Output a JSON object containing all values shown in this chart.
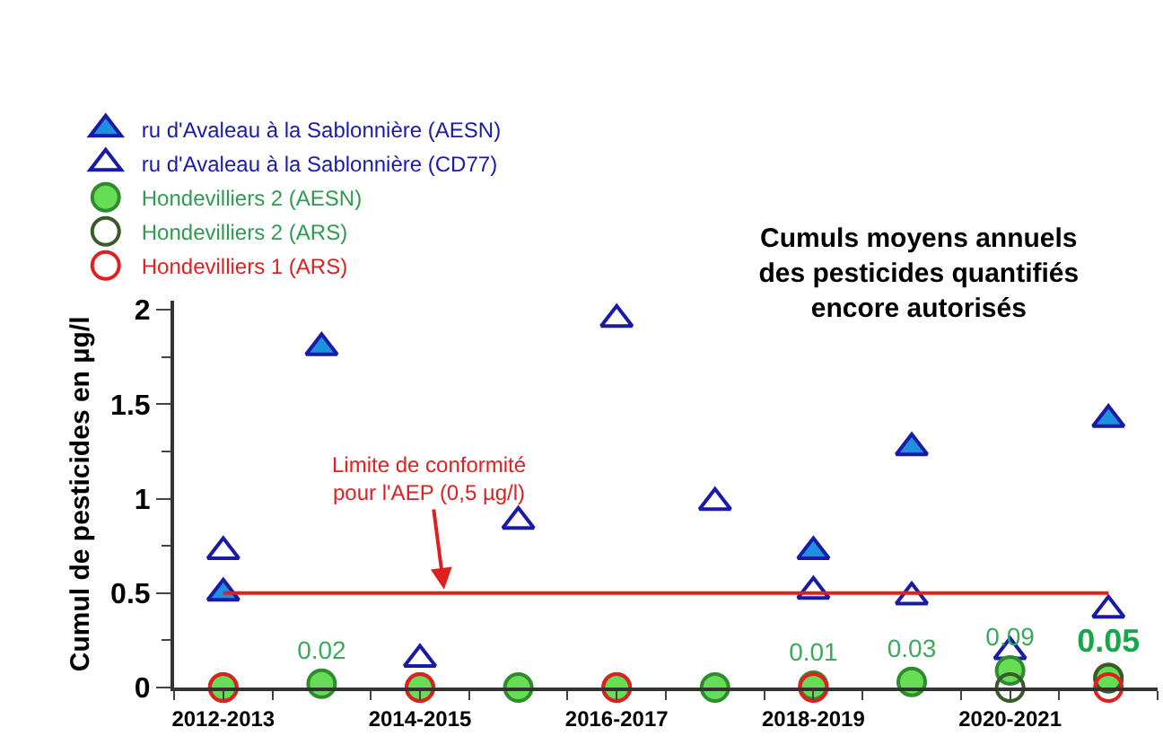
{
  "chart_data": {
    "type": "scatter",
    "title": "Cumuls moyens annuels\ndes pesticides quantifiés\nencore autorisés",
    "ylabel": "Cumul de pesticides en µg/l",
    "categories": [
      "2012-2013",
      null,
      "2014-2015",
      null,
      "2016-2017",
      null,
      "2018-2019",
      null,
      "2020-2021",
      null
    ],
    "series": [
      {
        "name": "ru d'Avaleau à la Sablonnière (AESN)",
        "color": "#1e90e0",
        "marker": "triangle",
        "values": [
          0.5,
          1.8,
          null,
          null,
          null,
          null,
          0.72,
          1.27,
          null,
          1.42
        ]
      },
      {
        "name": "ru d'Avaleau à la Sablonnière (CD77)",
        "color": "#1a1aa8",
        "marker": "triangle",
        "values": [
          0.72,
          null,
          0.15,
          0.88,
          1.95,
          0.98,
          0.51,
          0.48,
          0.19,
          0.41
        ]
      },
      {
        "name": "Hondevilliers 2 (AESN)",
        "color": "#66dd55",
        "marker": "circle",
        "values": [
          0,
          0.02,
          0,
          0,
          0,
          0,
          0.01,
          0.03,
          0.09,
          0.05
        ],
        "value_labels": [
          null,
          "0.02",
          null,
          null,
          null,
          null,
          "0.01",
          "0.03",
          "0.09",
          null
        ]
      },
      {
        "name": "Hondevilliers 2 (ARS)",
        "color": "#3a5a2a",
        "marker": "circle",
        "values": [
          null,
          null,
          null,
          null,
          null,
          null,
          null,
          null,
          0,
          0.05
        ],
        "value_labels": [
          null,
          null,
          null,
          null,
          null,
          null,
          null,
          null,
          null,
          "0.05"
        ]
      },
      {
        "name": "Hondevilliers 1 (ARS)",
        "color": "#e02020",
        "marker": "circle",
        "values": [
          0,
          null,
          0,
          null,
          0,
          null,
          0,
          null,
          null,
          0
        ]
      }
    ],
    "ylim": [
      0,
      2.05
    ],
    "yticks": [
      0,
      0.5,
      1,
      1.5,
      2
    ],
    "legend": "top",
    "ref_lines": [
      {
        "axis": "y",
        "value": 0.5,
        "label": "Limite de conformité\npour l'AEP (0,5 µg/l)",
        "color": "#e02020"
      }
    ]
  }
}
